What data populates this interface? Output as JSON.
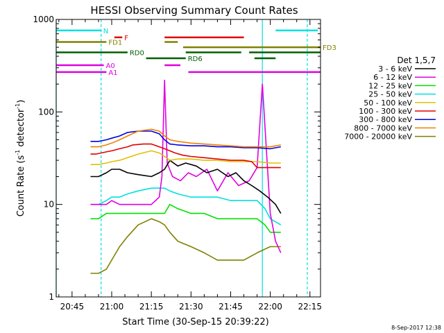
{
  "chart_data": {
    "type": "line",
    "title": "HESSI Observing Summary Count Rates",
    "xlabel": "Start Time (30-Sep-15 20:39:22)",
    "ylabel": "Count Rate (s⁻¹ detector⁻¹)",
    "ylabel_parts": {
      "base": "Count Rate (s",
      "sup1": "-1",
      "mid": " detector",
      "sup2": "-1",
      "end": ")"
    },
    "yscale": "log",
    "ylim": [
      1,
      1000
    ],
    "y_ticks": [
      1,
      10,
      100,
      1000
    ],
    "y_tick_labels": [
      "1",
      "10",
      "100",
      "1000"
    ],
    "x_range_minutes": [
      "20:39",
      "22:19"
    ],
    "x_tick_labels": [
      "20:45",
      "21:00",
      "21:15",
      "21:30",
      "21:45",
      "22:00",
      "22:15"
    ],
    "legend_title": "Det 1,5,7",
    "legend_placement": "right",
    "series": [
      {
        "name": "3 - 6 keV",
        "color": "#000000",
        "x": [
          "20:52",
          "20:55",
          "20:58",
          "21:00",
          "21:03",
          "21:06",
          "21:10",
          "21:15",
          "21:18",
          "21:20",
          "21:22",
          "21:25",
          "21:28",
          "21:32",
          "21:36",
          "21:40",
          "21:44",
          "21:47",
          "21:50",
          "21:53",
          "21:56",
          "21:59",
          "22:02",
          "22:04"
        ],
        "y": [
          20,
          20,
          22,
          24,
          24,
          22,
          21,
          20,
          22,
          24,
          30,
          26,
          28,
          26,
          22,
          24,
          20,
          22,
          18,
          16,
          14,
          12,
          10,
          8
        ]
      },
      {
        "name": "6 - 12 keV",
        "color": "#e000e0",
        "x": [
          "20:52",
          "20:55",
          "20:58",
          "21:00",
          "21:03",
          "21:06",
          "21:10",
          "21:15",
          "21:18",
          "21:19",
          "21:20",
          "21:21",
          "21:23",
          "21:26",
          "21:29",
          "21:32",
          "21:36",
          "21:40",
          "21:44",
          "21:48",
          "21:52",
          "21:55",
          "21:57",
          "22:00",
          "22:02",
          "22:04"
        ],
        "y": [
          10,
          10,
          10,
          11,
          10,
          10,
          10,
          10,
          12,
          20,
          220,
          28,
          20,
          18,
          22,
          20,
          24,
          14,
          22,
          16,
          18,
          25,
          200,
          8,
          4,
          3
        ]
      },
      {
        "name": "12 - 25 keV",
        "color": "#00e000",
        "x": [
          "20:52",
          "20:55",
          "20:58",
          "21:00",
          "21:03",
          "21:06",
          "21:10",
          "21:15",
          "21:20",
          "21:22",
          "21:25",
          "21:30",
          "21:35",
          "21:40",
          "21:45",
          "21:50",
          "21:55",
          "21:58",
          "22:00",
          "22:04"
        ],
        "y": [
          7,
          7,
          8,
          8,
          8,
          8,
          8,
          8,
          8,
          10,
          9,
          8,
          8,
          7,
          7,
          7,
          7,
          6,
          5,
          5
        ]
      },
      {
        "name": "25 - 50 keV",
        "color": "#00e0e0",
        "x": [
          "20:52",
          "20:55",
          "20:58",
          "21:00",
          "21:03",
          "21:06",
          "21:10",
          "21:15",
          "21:20",
          "21:22",
          "21:25",
          "21:30",
          "21:35",
          "21:40",
          "21:45",
          "21:50",
          "21:55",
          "21:58",
          "22:00",
          "22:04"
        ],
        "y": [
          10,
          10,
          11,
          12,
          12,
          13,
          14,
          15,
          15,
          14,
          13,
          12,
          12,
          12,
          11,
          11,
          11,
          9,
          7,
          6
        ]
      },
      {
        "name": "50 - 100 keV",
        "color": "#e0c000",
        "x": [
          "20:52",
          "20:55",
          "20:58",
          "21:00",
          "21:03",
          "21:06",
          "21:10",
          "21:15",
          "21:18",
          "21:20",
          "21:22",
          "21:25",
          "21:30",
          "21:35",
          "21:40",
          "21:45",
          "21:50",
          "21:55",
          "22:00",
          "22:04"
        ],
        "y": [
          27,
          27,
          28,
          29,
          30,
          32,
          35,
          38,
          36,
          33,
          30,
          31,
          31,
          30,
          30,
          29,
          29,
          29,
          28,
          28
        ]
      },
      {
        "name": "100 - 300 keV",
        "color": "#e00000",
        "x": [
          "20:52",
          "20:54",
          "20:56",
          "20:58",
          "21:00",
          "21:03",
          "21:06",
          "21:08",
          "21:12",
          "21:15",
          "21:18",
          "21:20",
          "21:22",
          "21:24",
          "21:27",
          "21:30",
          "21:35",
          "21:40",
          "21:45",
          "21:50",
          "21:53",
          "21:55",
          "22:00",
          "22:04"
        ],
        "y": [
          35,
          35,
          36,
          37,
          38,
          40,
          42,
          44,
          45,
          45,
          42,
          40,
          38,
          36,
          34,
          33,
          32,
          31,
          30,
          30,
          29,
          25,
          25,
          25
        ]
      },
      {
        "name": "300 - 800 keV",
        "color": "#0000e0",
        "x": [
          "20:52",
          "20:55",
          "20:58",
          "21:00",
          "21:03",
          "21:06",
          "21:10",
          "21:15",
          "21:18",
          "21:20",
          "21:22",
          "21:25",
          "21:30",
          "21:35",
          "21:40",
          "21:45",
          "21:50",
          "21:55",
          "22:00",
          "22:04"
        ],
        "y": [
          48,
          48,
          50,
          52,
          55,
          60,
          62,
          62,
          58,
          50,
          45,
          44,
          43,
          43,
          42,
          42,
          41,
          41,
          40,
          42
        ]
      },
      {
        "name": "800 - 7000 keV",
        "color": "#f08000",
        "x": [
          "20:52",
          "20:55",
          "20:58",
          "21:00",
          "21:03",
          "21:06",
          "21:10",
          "21:15",
          "21:18",
          "21:20",
          "21:22",
          "21:25",
          "21:30",
          "21:35",
          "21:40",
          "21:45",
          "21:50",
          "21:55",
          "22:00",
          "22:04"
        ],
        "y": [
          42,
          42,
          44,
          46,
          50,
          55,
          62,
          65,
          62,
          55,
          50,
          48,
          46,
          45,
          44,
          43,
          42,
          42,
          42,
          44
        ]
      },
      {
        "name": "7000 - 20000 keV",
        "color": "#808000",
        "x": [
          "20:52",
          "20:55",
          "20:58",
          "21:00",
          "21:03",
          "21:06",
          "21:10",
          "21:15",
          "21:18",
          "21:20",
          "21:22",
          "21:25",
          "21:30",
          "21:35",
          "21:40",
          "21:45",
          "21:50",
          "21:55",
          "22:00",
          "22:04"
        ],
        "y": [
          1.8,
          1.8,
          2,
          2.5,
          3.5,
          4.5,
          6,
          7,
          6.5,
          6,
          5,
          4,
          3.5,
          3,
          2.5,
          2.5,
          2.5,
          3,
          3.5,
          3.5
        ]
      }
    ],
    "flags": [
      {
        "label": "N",
        "color": "#00e0e0",
        "level": 760,
        "segments": [
          [
            "20:39",
            "20:56"
          ],
          [
            "22:02",
            "22:18"
          ]
        ]
      },
      {
        "label": "F",
        "color": "#e00000",
        "level": 640,
        "segments": [
          [
            "21:01",
            "21:04"
          ],
          [
            "21:20",
            "21:50"
          ]
        ]
      },
      {
        "label": "FD1",
        "color": "#808000",
        "level": 570,
        "segments": [
          [
            "20:39",
            "20:58"
          ],
          [
            "21:20",
            "21:25"
          ]
        ]
      },
      {
        "label": "FD3",
        "color": "#808000",
        "level": 500,
        "segments": [
          [
            "21:27",
            "22:19"
          ]
        ]
      },
      {
        "label": "RD0",
        "color": "#006000",
        "level": 440,
        "segments": [
          [
            "20:39",
            "21:06"
          ],
          [
            "21:28",
            "21:49"
          ],
          [
            "21:52",
            "22:19"
          ]
        ]
      },
      {
        "label": "RD6",
        "color": "#006000",
        "level": 380,
        "segments": [
          [
            "21:13",
            "21:28"
          ],
          [
            "21:54",
            "22:02"
          ]
        ]
      },
      {
        "label": "A0",
        "color": "#e000e0",
        "level": 320,
        "segments": [
          [
            "20:39",
            "20:57"
          ],
          [
            "21:20",
            "21:26"
          ]
        ]
      },
      {
        "label": "A1",
        "color": "#e000e0",
        "level": 270,
        "segments": [
          [
            "20:39",
            "20:58"
          ],
          [
            "21:29",
            "22:19"
          ]
        ]
      }
    ],
    "markers": [
      {
        "color": "#00e0e0",
        "time": "20:39",
        "style": "solid"
      },
      {
        "color": "#00e0e0",
        "time": "20:56",
        "style": "dashed"
      },
      {
        "color": "#00e0e0",
        "time": "21:57",
        "style": "solid"
      },
      {
        "color": "#00e0e0",
        "time": "22:14",
        "style": "dashed"
      }
    ]
  },
  "footer_timestamp": "8-Sep-2017 12:38"
}
